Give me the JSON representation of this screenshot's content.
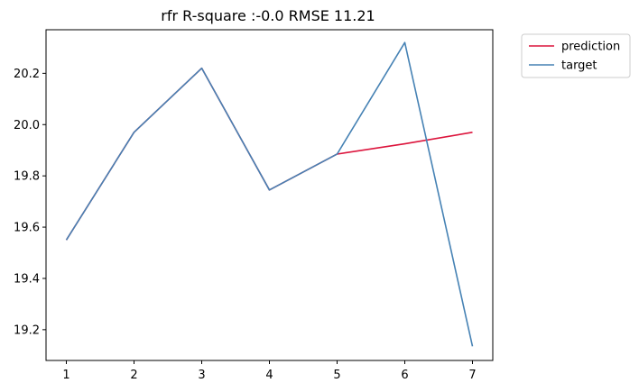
{
  "chart_data": {
    "type": "line",
    "title": "rfr R-square :-0.0 RMSE 11.21",
    "xlabel": "",
    "ylabel": "",
    "x": [
      1,
      2,
      3,
      4,
      5,
      6,
      7
    ],
    "xlim": [
      0.7,
      7.3
    ],
    "ylim": [
      19.08,
      20.37
    ],
    "xticks": [
      1,
      2,
      3,
      4,
      5,
      6,
      7
    ],
    "yticks": [
      19.2,
      19.4,
      19.6,
      19.8,
      20.0,
      20.2
    ],
    "ytick_labels": [
      "19.2",
      "19.4",
      "19.6",
      "19.8",
      "20.0",
      "20.2"
    ],
    "series": [
      {
        "name": "prediction",
        "color": "#dc143c",
        "values": [
          19.55,
          19.97,
          20.22,
          19.745,
          19.885,
          19.925,
          19.97
        ]
      },
      {
        "name": "target",
        "color": "#4682b4",
        "values": [
          19.55,
          19.97,
          20.22,
          19.745,
          19.885,
          20.32,
          19.135
        ]
      }
    ],
    "grid": false,
    "legend_position": "outside-top-right"
  }
}
